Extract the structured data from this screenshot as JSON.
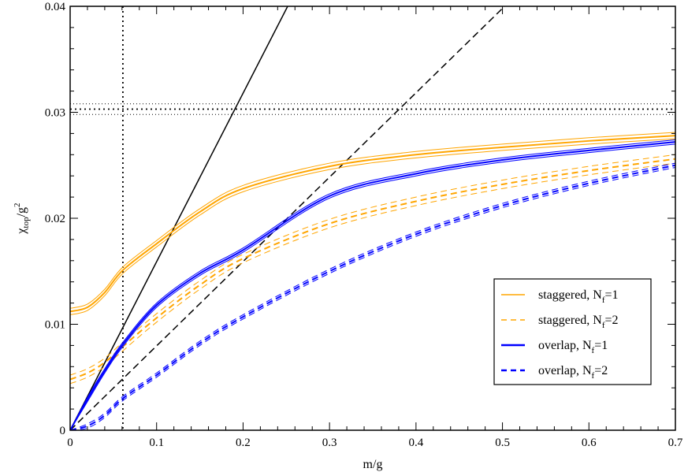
{
  "chart_data": {
    "type": "line",
    "xlabel": "m/g",
    "ylabel_main": "χ",
    "ylabel_sub": "top",
    "ylabel_rest": "/g",
    "ylabel_sup": "2",
    "xlim": [
      0,
      0.7
    ],
    "ylim": [
      0,
      0.04
    ],
    "x_ticks": [
      "0",
      "0.1",
      "0.2",
      "0.3",
      "0.4",
      "0.5",
      "0.6",
      "0.7"
    ],
    "y_ticks": [
      "0",
      "0.01",
      "0.02",
      "0.03",
      "0.04"
    ],
    "grid": false,
    "legend_placement": "lower-right",
    "series": [
      {
        "name": "staggered, N",
        "sub": "f",
        "suffix": "=1",
        "color": "#ffa500",
        "dash": "solid",
        "band": 0.0003,
        "x": [
          0,
          0.02,
          0.04,
          0.061,
          0.1,
          0.15,
          0.2,
          0.3,
          0.4,
          0.5,
          0.6,
          0.7
        ],
        "y": [
          0.0112,
          0.0116,
          0.013,
          0.0151,
          0.0176,
          0.0206,
          0.0228,
          0.0249,
          0.026,
          0.0267,
          0.0273,
          0.0278
        ]
      },
      {
        "name": "staggered, N",
        "sub": "f",
        "suffix": "=2",
        "color": "#ffa500",
        "dash": "dashed",
        "band": 0.0004,
        "x": [
          0,
          0.02,
          0.04,
          0.061,
          0.1,
          0.15,
          0.2,
          0.3,
          0.4,
          0.5,
          0.6,
          0.7
        ],
        "y": [
          0.0048,
          0.0054,
          0.0064,
          0.0079,
          0.0106,
          0.0137,
          0.0162,
          0.0195,
          0.0216,
          0.0232,
          0.0245,
          0.0256
        ]
      },
      {
        "name": "overlap, N",
        "sub": "f",
        "suffix": "=1",
        "color": "#0000ff",
        "dash": "solid",
        "band": 0.0002,
        "x": [
          0,
          0.02,
          0.04,
          0.061,
          0.1,
          0.15,
          0.2,
          0.3,
          0.4,
          0.5,
          0.6,
          0.7
        ],
        "y": [
          0,
          0.0029,
          0.0056,
          0.0081,
          0.0118,
          0.0148,
          0.017,
          0.0221,
          0.0242,
          0.0255,
          0.0264,
          0.0272
        ]
      },
      {
        "name": "overlap, N",
        "sub": "f",
        "suffix": "=2",
        "color": "#0000ff",
        "dash": "dashed",
        "band": 0.0002,
        "x": [
          0,
          0.02,
          0.04,
          0.061,
          0.1,
          0.15,
          0.2,
          0.3,
          0.4,
          0.5,
          0.6,
          0.7
        ],
        "y": [
          0,
          0.0004,
          0.0014,
          0.003,
          0.0052,
          0.0082,
          0.0107,
          0.015,
          0.0185,
          0.0212,
          0.0233,
          0.025
        ]
      }
    ],
    "reference_lines": [
      {
        "kind": "line",
        "slope": 0.159,
        "style": "solid",
        "color": "#000000"
      },
      {
        "kind": "line",
        "slope": 0.0796,
        "style": "dashed",
        "color": "#000000"
      },
      {
        "kind": "vertical",
        "x": 0.061,
        "style": "dotted",
        "color": "#000000"
      },
      {
        "kind": "horizontal",
        "y": 0.0303,
        "band": [
          0.0298,
          0.0308
        ],
        "style": "dotted",
        "color": "#000000"
      }
    ]
  }
}
